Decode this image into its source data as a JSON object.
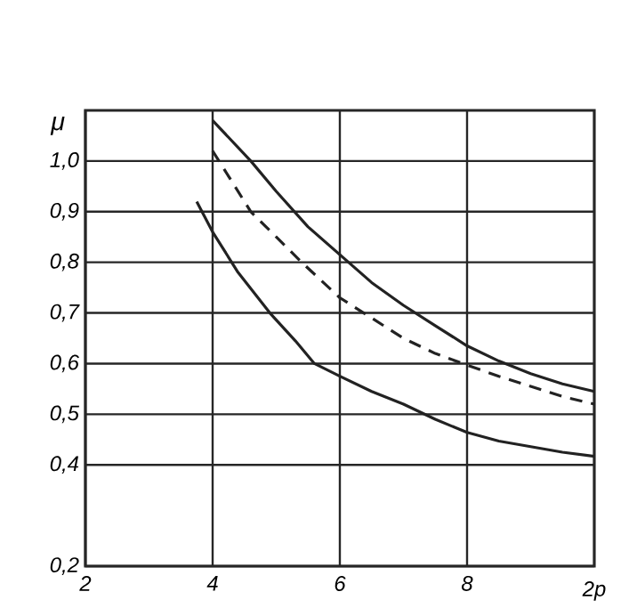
{
  "chart_data": {
    "type": "line",
    "xlabel": "2p",
    "ylabel": "μ",
    "xlim": [
      2,
      10
    ],
    "xticks": [
      2,
      4,
      6,
      8
    ],
    "ylim": [
      0.2,
      1.1
    ],
    "yticks": [
      {
        "value": 0.2,
        "label": "0,2"
      },
      {
        "value": 0.4,
        "label": "0,4"
      },
      {
        "value": 0.5,
        "label": "0,5"
      },
      {
        "value": 0.6,
        "label": "0,6"
      },
      {
        "value": 0.7,
        "label": "0,7"
      },
      {
        "value": 0.8,
        "label": "0,8"
      },
      {
        "value": 0.9,
        "label": "0,9"
      },
      {
        "value": 1.0,
        "label": "1,0"
      }
    ],
    "grid": true,
    "marker": "none",
    "series": [
      {
        "color": "#222222",
        "line_style": "solid",
        "x": [
          4,
          4.6,
          5,
          5.5,
          6,
          6.5,
          7,
          7.5,
          8,
          8.5,
          9,
          9.5,
          10
        ],
        "values": [
          1.08,
          1.0,
          0.94,
          0.87,
          0.815,
          0.76,
          0.715,
          0.675,
          0.635,
          0.605,
          0.58,
          0.56,
          0.545
        ]
      },
      {
        "color": "#222222",
        "line_style": "dashed",
        "x": [
          4,
          4.6,
          5,
          5.4,
          6,
          6.5,
          7,
          7.5,
          8,
          8.5,
          9,
          9.5,
          10
        ],
        "values": [
          1.02,
          0.9,
          0.85,
          0.8,
          0.73,
          0.69,
          0.65,
          0.62,
          0.597,
          0.575,
          0.555,
          0.535,
          0.52
        ]
      },
      {
        "color": "#222222",
        "line_style": "solid",
        "x": [
          3.75,
          4,
          4.4,
          4.9,
          5.3,
          5.6,
          6,
          6.5,
          7,
          7.5,
          8,
          8.5,
          9,
          9.5,
          10
        ],
        "values": [
          0.92,
          0.86,
          0.78,
          0.7,
          0.645,
          0.6,
          0.575,
          0.545,
          0.52,
          0.49,
          0.464,
          0.447,
          0.436,
          0.425,
          0.417
        ]
      }
    ]
  }
}
